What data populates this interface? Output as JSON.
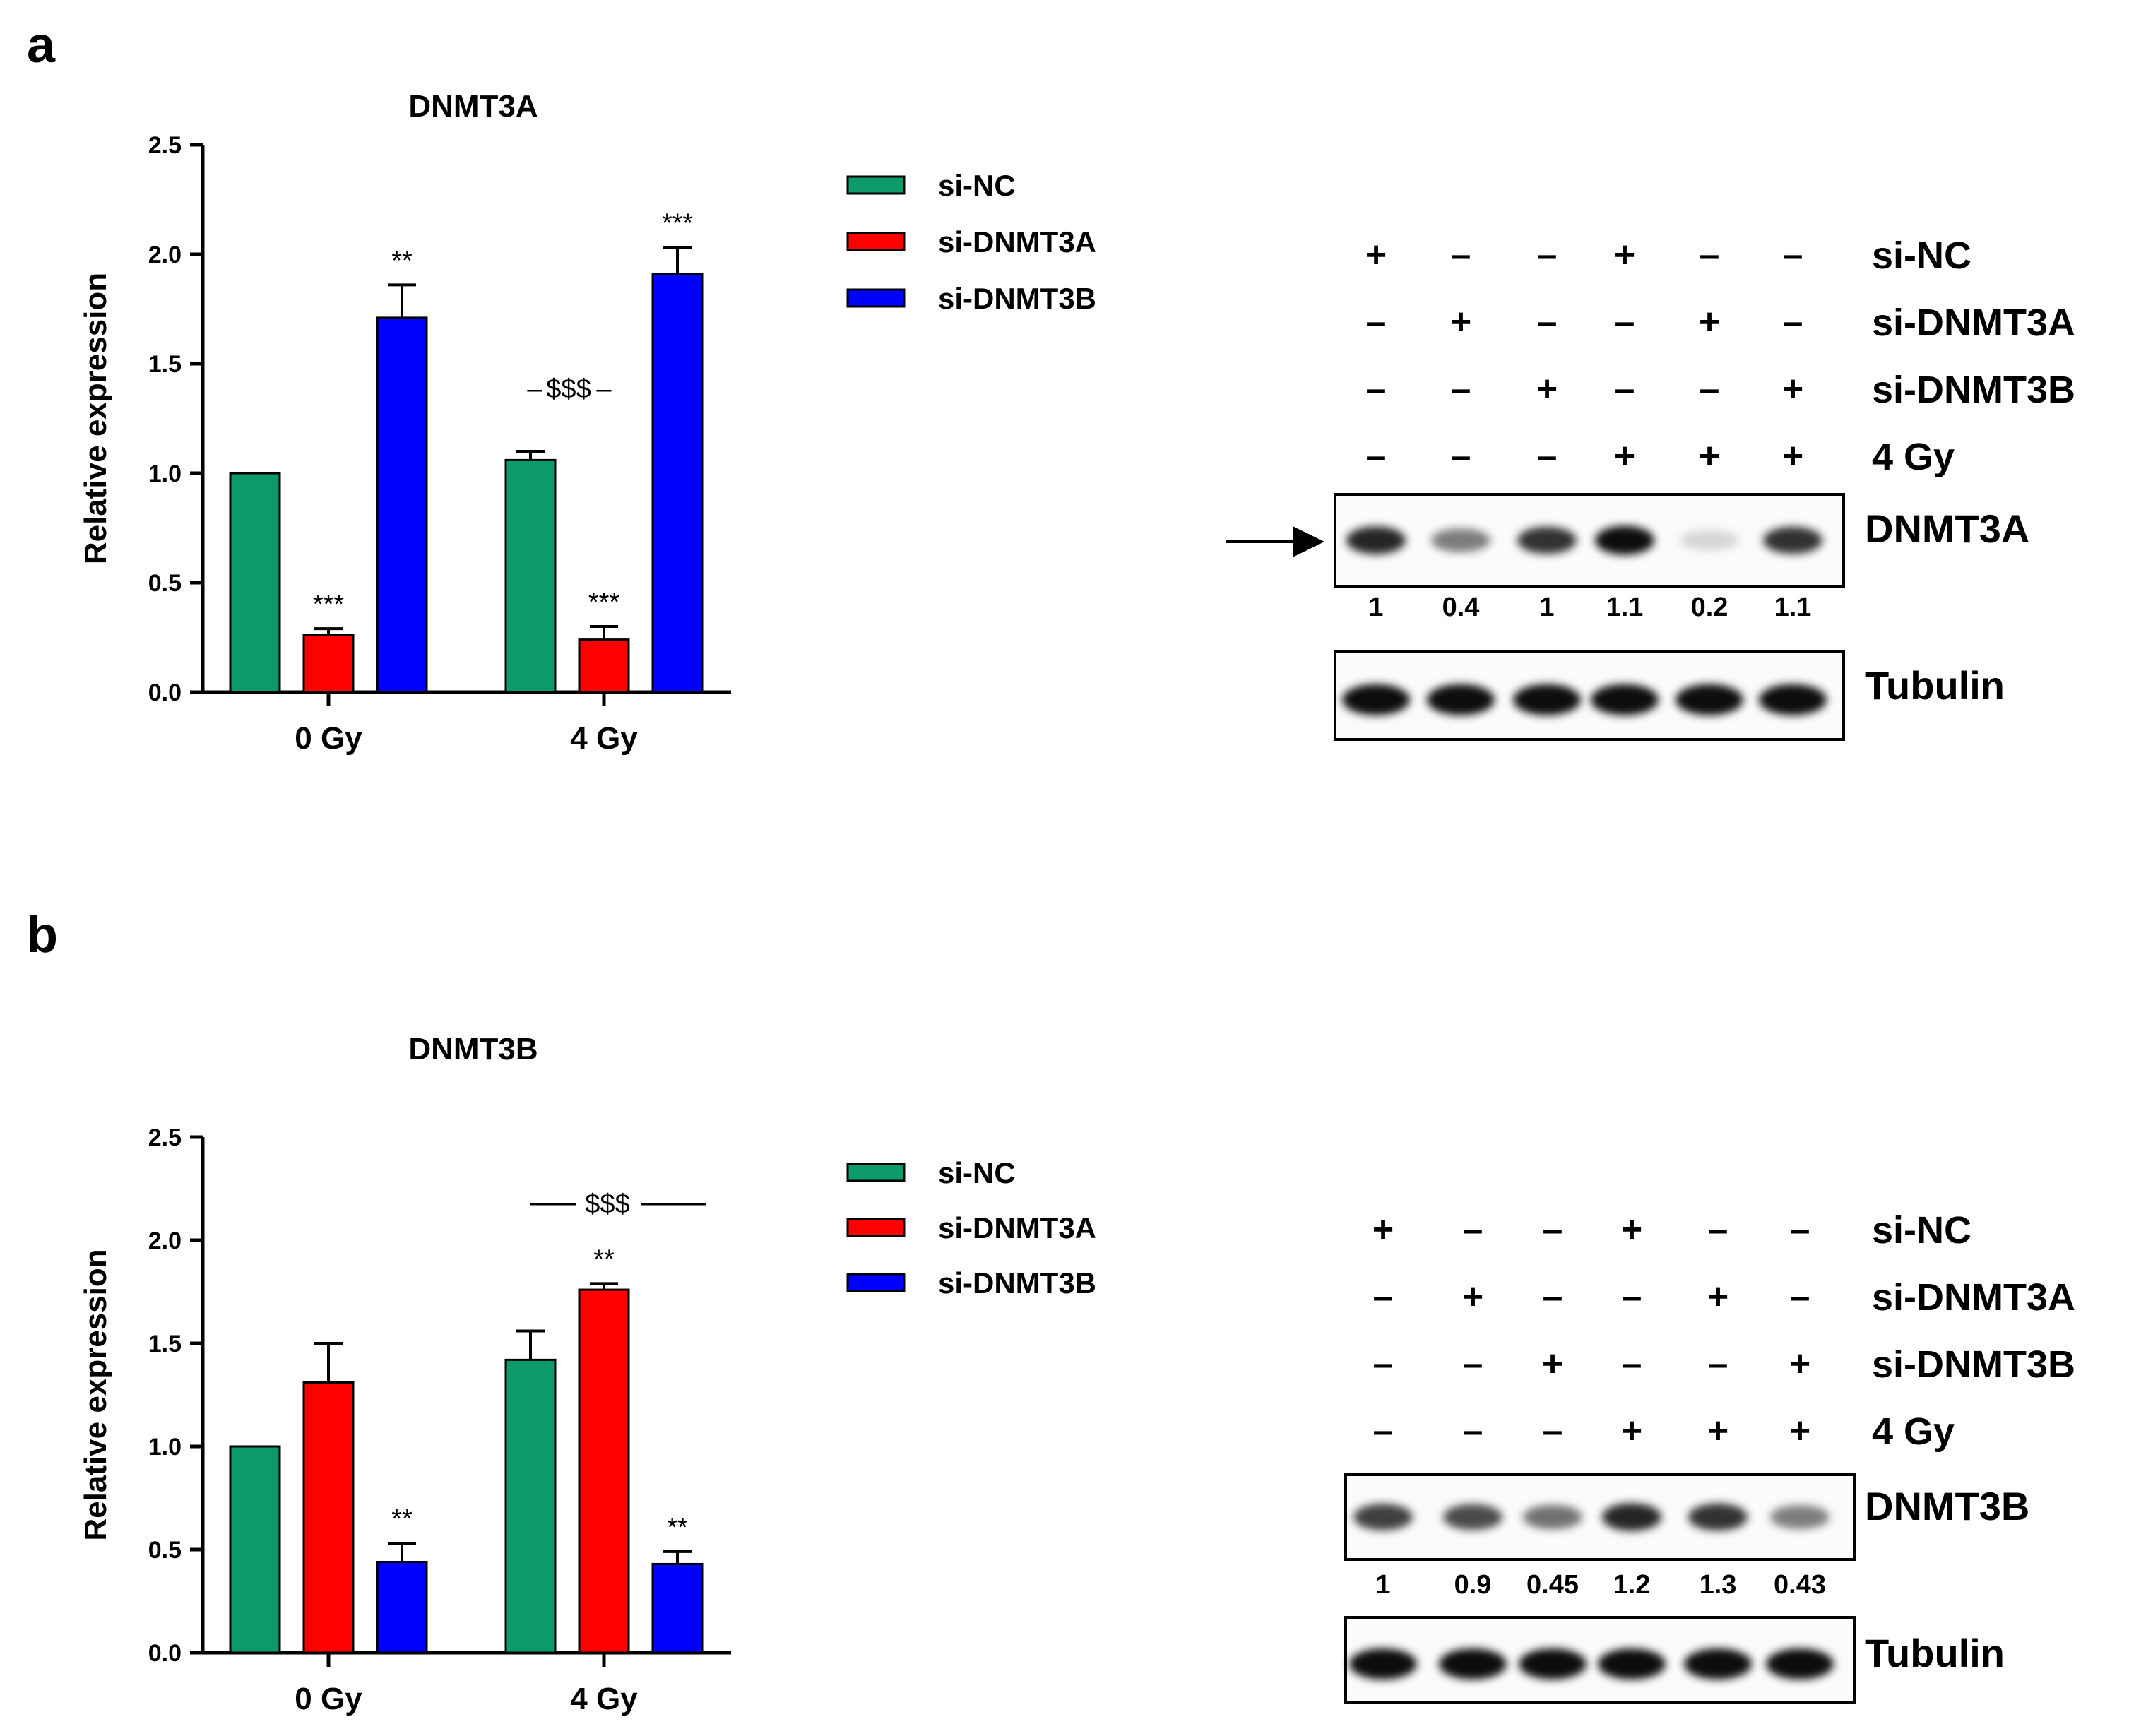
{
  "panels": [
    {
      "letter": "a",
      "chart_data": {
        "type": "bar",
        "title": "DNMT3A",
        "ylabel": "Relative expression",
        "xlabel": "",
        "ylim": [
          0,
          2.5
        ],
        "yticks": [
          "0.0",
          "0.5",
          "1.0",
          "1.5",
          "2.0",
          "2.5"
        ],
        "categories": [
          "0 Gy",
          "4 Gy"
        ],
        "series": [
          {
            "name": "si-NC",
            "color": "#0c9a69",
            "values": [
              1.0,
              1.06
            ],
            "errors": [
              0,
              0.04
            ],
            "sig": [
              "",
              ""
            ]
          },
          {
            "name": "si-DNMT3A",
            "color": "#ff0000",
            "values": [
              0.26,
              0.24
            ],
            "errors": [
              0.03,
              0.06
            ],
            "sig": [
              "***",
              "***"
            ]
          },
          {
            "name": "si-DNMT3B",
            "color": "#0000ff",
            "values": [
              1.71,
              1.91
            ],
            "errors": [
              0.15,
              0.12
            ],
            "sig": [
              "**",
              "***"
            ]
          }
        ],
        "group_annotation": "$$$"
      },
      "blot": {
        "conditions": [
          {
            "label": "si-NC",
            "signs": [
              "+",
              "-",
              "-",
              "+",
              "-",
              "-"
            ]
          },
          {
            "label": "si-DNMT3A",
            "signs": [
              "-",
              "+",
              "-",
              "-",
              "+",
              "-"
            ]
          },
          {
            "label": "si-DNMT3B",
            "signs": [
              "-",
              "-",
              "+",
              "-",
              "-",
              "+"
            ]
          },
          {
            "label": "4 Gy",
            "signs": [
              "-",
              "-",
              "-",
              "+",
              "+",
              "+"
            ]
          }
        ],
        "target_label": "DNMT3A",
        "loading_label": "Tubulin",
        "quantification": [
          "1",
          "0.4",
          "1",
          "1.1",
          "0.2",
          "1.1"
        ],
        "target_intensity": [
          0.85,
          0.5,
          0.8,
          0.95,
          0.15,
          0.8
        ],
        "has_arrow": true
      }
    },
    {
      "letter": "b",
      "chart_data": {
        "type": "bar",
        "title": "DNMT3B",
        "ylabel": "Relative expression",
        "xlabel": "",
        "ylim": [
          0,
          2.5
        ],
        "yticks": [
          "0.0",
          "0.5",
          "1.0",
          "1.5",
          "2.0",
          "2.5"
        ],
        "categories": [
          "0 Gy",
          "4 Gy"
        ],
        "series": [
          {
            "name": "si-NC",
            "color": "#0c9a69",
            "values": [
              1.0,
              1.42
            ],
            "errors": [
              0,
              0.14
            ],
            "sig": [
              "",
              ""
            ]
          },
          {
            "name": "si-DNMT3A",
            "color": "#ff0000",
            "values": [
              1.31,
              1.76
            ],
            "errors": [
              0.19,
              0.03
            ],
            "sig": [
              "",
              "**"
            ]
          },
          {
            "name": "si-DNMT3B",
            "color": "#0000ff",
            "values": [
              0.44,
              0.43
            ],
            "errors": [
              0.09,
              0.06
            ],
            "sig": [
              "**",
              "**"
            ]
          }
        ],
        "group_annotation": "$$$"
      },
      "blot": {
        "conditions": [
          {
            "label": "si-NC",
            "signs": [
              "+",
              "-",
              "-",
              "+",
              "-",
              "-"
            ]
          },
          {
            "label": "si-DNMT3A",
            "signs": [
              "-",
              "+",
              "-",
              "-",
              "+",
              "-"
            ]
          },
          {
            "label": "si-DNMT3B",
            "signs": [
              "-",
              "-",
              "+",
              "-",
              "-",
              "+"
            ]
          },
          {
            "label": "4 Gy",
            "signs": [
              "-",
              "-",
              "-",
              "+",
              "+",
              "+"
            ]
          }
        ],
        "target_label": "DNMT3B",
        "loading_label": "Tubulin",
        "quantification": [
          "1",
          "0.9",
          "0.45",
          "1.2",
          "1.3",
          "0.43"
        ],
        "target_intensity": [
          0.75,
          0.7,
          0.55,
          0.85,
          0.8,
          0.5
        ],
        "has_arrow": false
      }
    }
  ]
}
